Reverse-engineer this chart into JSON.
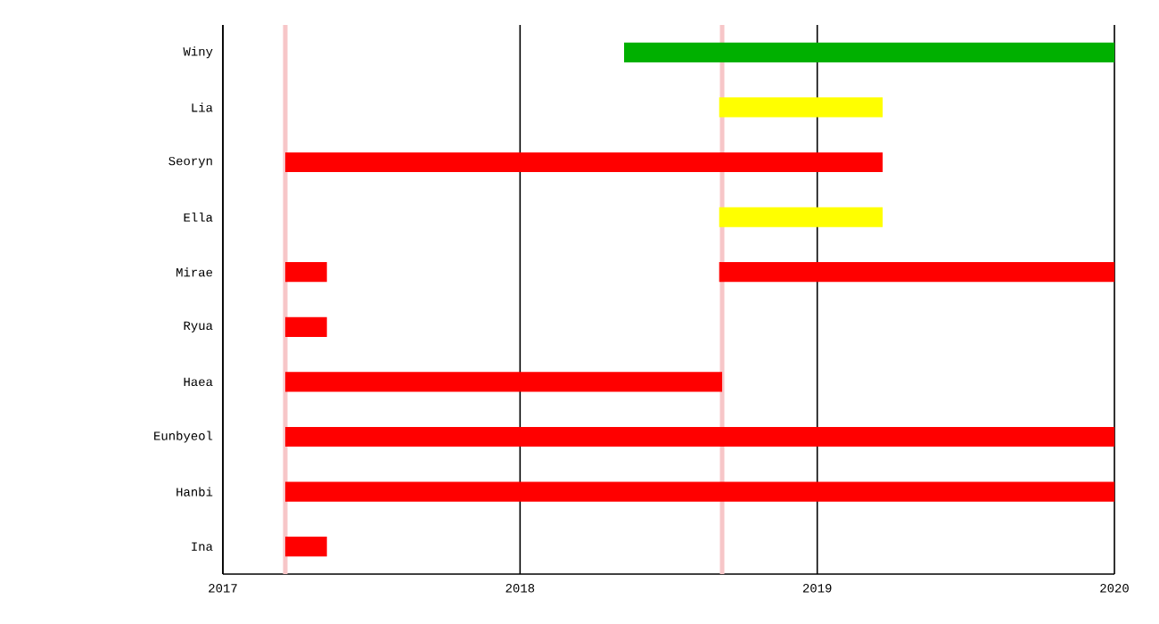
{
  "chart_data": {
    "type": "bar",
    "orientation": "horizontal",
    "categories": [
      "Winy",
      "Lia",
      "Seoryn",
      "Ella",
      "Mirae",
      "Ryua",
      "Haea",
      "Eunbyeol",
      "Hanbi",
      "Ina"
    ],
    "series": [
      {
        "base": [
          2018.35,
          2018.67,
          2017.21,
          2018.67,
          2017.21,
          2017.21,
          2017.21,
          2017.21,
          2017.21,
          2017.21
        ],
        "values": [
          1.65,
          0.55,
          2.01,
          0.55,
          0.14,
          0.14,
          1.47,
          2.79,
          2.79,
          0.14
        ],
        "colors": [
          "#00b000",
          "#ffff00",
          "#ff0000",
          "#ffff00",
          "#ff0000",
          "#ff0000",
          "#ff0000",
          "#ff0000",
          "#ff0000",
          "#ff0000"
        ]
      },
      {
        "base": [
          null,
          null,
          null,
          null,
          2018.67,
          null,
          null,
          null,
          null,
          null
        ],
        "values": [
          null,
          null,
          null,
          null,
          1.33,
          null,
          null,
          null,
          null,
          null
        ],
        "colors": [
          null,
          null,
          null,
          null,
          "#ff0000",
          null,
          null,
          null,
          null,
          null
        ]
      }
    ],
    "xlim": [
      2017,
      2020
    ],
    "xticks": [
      2017,
      2018,
      2019,
      2020
    ],
    "grid": "x",
    "ref_lines": [
      {
        "axis": "x",
        "value": 2017.21,
        "color": "#f7c6c8"
      },
      {
        "axis": "x",
        "value": 2018.68,
        "color": "#f7c6c8"
      }
    ]
  }
}
